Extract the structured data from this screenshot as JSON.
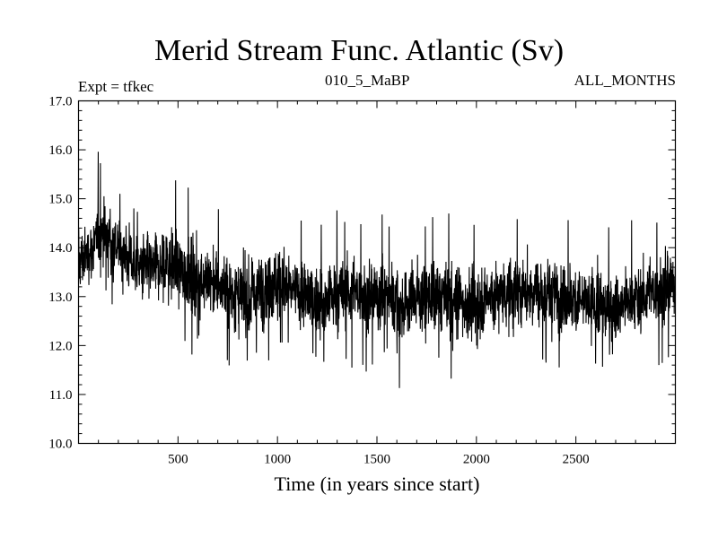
{
  "chart_data": {
    "type": "line",
    "title": "Merid Stream Func. Atlantic (Sv)",
    "annotations": {
      "left": "Expt = tfkec",
      "center": "010_5_MaBP",
      "right": "ALL_MONTHS"
    },
    "xlabel": "Time (in years since start)",
    "ylabel": "",
    "xlim": [
      0,
      3000
    ],
    "ylim": [
      10.0,
      17.0
    ],
    "xticks": [
      500,
      1000,
      1500,
      2000,
      2500
    ],
    "xtick_labels": [
      "500",
      "1000",
      "1500",
      "2000",
      "2500"
    ],
    "yticks": [
      10,
      11,
      12,
      13,
      14,
      15,
      16,
      17
    ],
    "ytick_labels": [
      "10.0",
      "11.0",
      "12.0",
      "13.0",
      "14.0",
      "15.0",
      "16.0",
      "17.0"
    ],
    "grid": false,
    "series": [
      {
        "color": "#000000",
        "x": [
          0,
          25,
          50,
          75,
          100,
          125,
          150,
          175,
          200,
          225,
          250,
          275,
          300,
          325,
          350,
          375,
          400,
          425,
          450,
          475,
          500,
          525,
          550,
          575,
          600,
          625,
          650,
          675,
          700,
          725,
          750,
          775,
          800,
          825,
          850,
          875,
          900,
          925,
          950,
          975,
          1000,
          1025,
          1050,
          1075,
          1100,
          1125,
          1150,
          1175,
          1200,
          1225,
          1250,
          1275,
          1300,
          1325,
          1350,
          1375,
          1400,
          1425,
          1450,
          1475,
          1500,
          1525,
          1550,
          1575,
          1600,
          1625,
          1650,
          1675,
          1700,
          1725,
          1750,
          1775,
          1800,
          1825,
          1850,
          1875,
          1900,
          1925,
          1950,
          1975,
          2000,
          2025,
          2050,
          2075,
          2100,
          2125,
          2150,
          2175,
          2200,
          2225,
          2250,
          2275,
          2300,
          2325,
          2350,
          2375,
          2400,
          2425,
          2450,
          2475,
          2500,
          2525,
          2550,
          2575,
          2600,
          2625,
          2650,
          2675,
          2700,
          2725,
          2750,
          2775,
          2800,
          2825,
          2850,
          2875,
          2900,
          2925,
          2950,
          2975,
          3000
        ],
        "y_max": [
          15.5,
          15.1,
          15.2,
          15.0,
          16.1,
          15.4,
          16.1,
          15.5,
          15.2,
          15.0,
          15.2,
          14.9,
          14.8,
          15.1,
          15.0,
          14.8,
          15.5,
          15.4,
          15.6,
          15.3,
          15.5,
          15.1,
          15.3,
          15.2,
          15.0,
          14.9,
          15.2,
          14.8,
          14.9,
          14.6,
          15.0,
          14.7,
          14.6,
          14.5,
          14.8,
          14.9,
          14.6,
          14.9,
          15.1,
          14.7,
          15.6,
          15.4,
          14.9,
          14.6,
          14.8,
          14.7,
          14.6,
          14.9,
          14.5,
          14.6,
          14.4,
          14.8,
          14.9,
          14.6,
          14.5,
          14.7,
          14.4,
          14.6,
          14.8,
          14.5,
          14.9,
          14.8,
          14.7,
          14.5,
          14.6,
          14.8,
          14.5,
          14.4,
          14.7,
          14.6,
          14.5,
          14.8,
          14.7,
          14.5,
          14.6,
          14.9,
          14.8,
          14.5,
          14.6,
          14.4,
          14.6,
          14.7,
          14.5,
          14.8,
          14.6,
          14.5,
          14.7,
          14.9,
          14.6,
          14.8,
          14.5,
          15.0,
          14.7,
          14.6,
          14.5,
          14.8,
          14.4,
          14.5,
          14.6,
          14.7,
          14.5,
          14.6,
          14.3,
          14.7,
          14.6,
          14.4,
          14.5,
          14.6,
          14.5,
          14.8,
          14.4,
          14.6,
          14.5,
          14.7,
          14.3,
          14.6,
          14.5,
          14.8,
          15.2,
          14.8,
          14.9
        ],
        "y_min": [
          12.2,
          12.6,
          12.9,
          12.5,
          12.9,
          13.1,
          12.8,
          12.6,
          12.5,
          12.4,
          12.3,
          12.5,
          12.2,
          12.4,
          12.0,
          11.8,
          12.3,
          12.1,
          11.9,
          12.2,
          12.1,
          11.9,
          12.2,
          11.7,
          12.1,
          11.8,
          11.9,
          11.7,
          11.6,
          11.8,
          11.5,
          11.7,
          11.3,
          11.1,
          10.7,
          11.5,
          11.9,
          11.8,
          11.6,
          11.7,
          11.8,
          11.6,
          11.9,
          12.0,
          11.8,
          11.9,
          11.5,
          11.8,
          11.7,
          11.6,
          11.3,
          11.7,
          11.5,
          11.4,
          11.6,
          11.5,
          11.7,
          11.6,
          11.4,
          11.6,
          11.5,
          11.6,
          11.8,
          11.2,
          11.1,
          10.8,
          11.6,
          11.5,
          11.3,
          11.7,
          11.6,
          11.4,
          11.5,
          11.7,
          11.6,
          11.2,
          11.5,
          11.4,
          11.3,
          11.4,
          10.8,
          11.5,
          11.8,
          11.6,
          11.5,
          11.7,
          11.6,
          11.3,
          11.5,
          11.6,
          11.4,
          11.6,
          11.7,
          11.5,
          11.6,
          11.8,
          11.4,
          11.6,
          11.7,
          11.5,
          11.3,
          11.6,
          11.5,
          11.2,
          11.5,
          11.4,
          11.6,
          10.7,
          11.5,
          11.7,
          11.4,
          11.5,
          11.6,
          11.7,
          11.8,
          11.6,
          11.7,
          11.5,
          11.8,
          11.7,
          12.0
        ],
        "y_mean": [
          13.7,
          13.8,
          13.9,
          14.0,
          14.2,
          14.3,
          14.2,
          14.1,
          14.0,
          13.9,
          13.8,
          13.7,
          13.6,
          13.6,
          13.6,
          13.5,
          13.6,
          13.6,
          13.7,
          13.6,
          13.6,
          13.5,
          13.5,
          13.5,
          13.4,
          13.4,
          13.3,
          13.3,
          13.2,
          13.2,
          13.1,
          13.1,
          13.0,
          12.9,
          12.9,
          13.0,
          13.1,
          13.2,
          13.3,
          13.3,
          13.3,
          13.2,
          13.2,
          13.1,
          13.1,
          13.0,
          13.0,
          12.9,
          12.9,
          12.9,
          12.9,
          13.0,
          13.0,
          13.0,
          13.1,
          13.1,
          13.1,
          13.1,
          13.0,
          13.0,
          13.0,
          13.1,
          13.1,
          13.0,
          12.9,
          12.8,
          12.9,
          13.0,
          13.0,
          13.0,
          13.0,
          13.0,
          13.0,
          13.0,
          13.0,
          12.9,
          12.9,
          12.9,
          12.9,
          12.8,
          12.8,
          12.9,
          13.0,
          13.0,
          13.0,
          13.1,
          13.1,
          13.0,
          13.0,
          13.1,
          13.1,
          13.2,
          13.1,
          13.1,
          13.1,
          13.1,
          13.0,
          13.0,
          13.0,
          13.0,
          12.9,
          12.9,
          12.9,
          12.8,
          12.8,
          12.8,
          12.8,
          12.7,
          12.8,
          12.8,
          12.9,
          12.9,
          13.0,
          13.0,
          13.0,
          13.1,
          13.1,
          13.2,
          13.2,
          13.2,
          13.3
        ]
      }
    ]
  }
}
